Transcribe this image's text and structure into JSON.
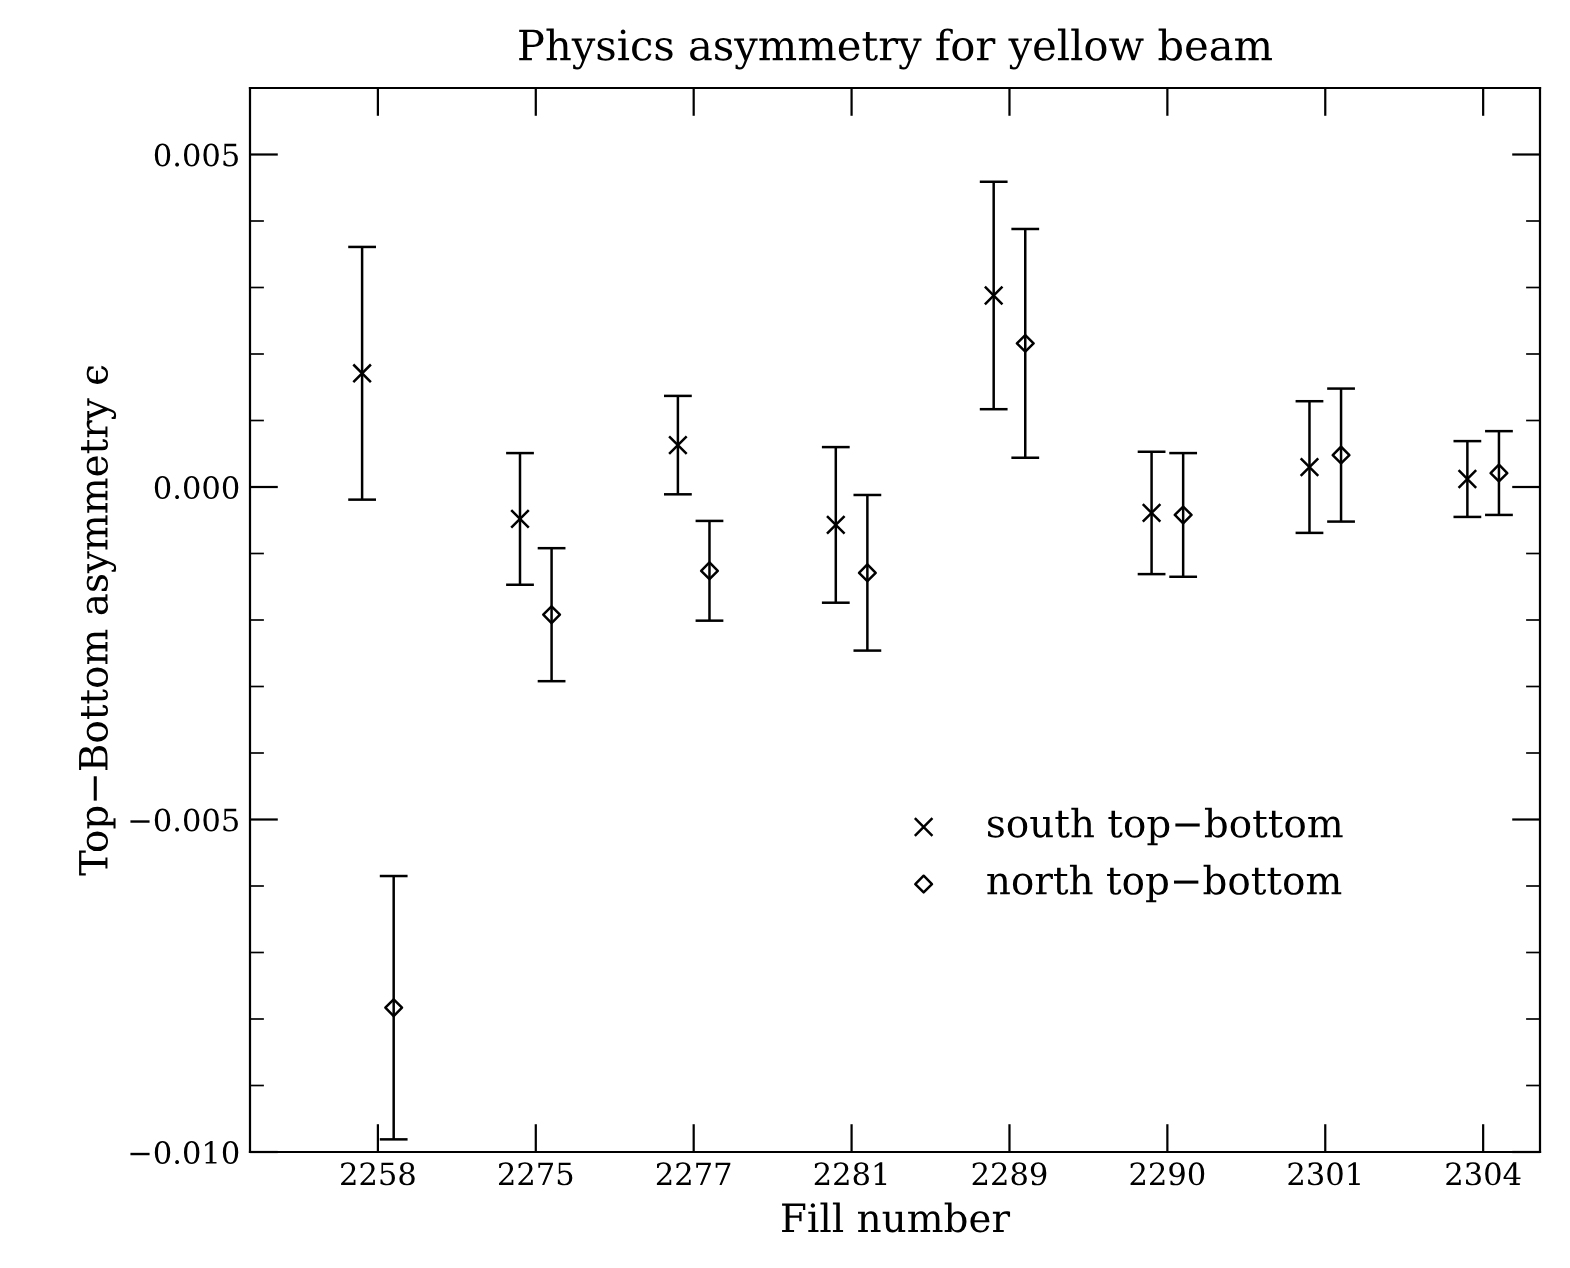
{
  "chart_data": {
    "type": "scatter",
    "title": "Physics asymmetry for yellow beam",
    "xlabel": "Fill number",
    "ylabel": "Top−Bottom asymmetry ϵ",
    "categories": [
      "2258",
      "2275",
      "2277",
      "2281",
      "2289",
      "2290",
      "2301",
      "2304"
    ],
    "series": [
      {
        "name": "south top−bottom",
        "color": "#000000",
        "marker": "cross",
        "values": [
          0.00171,
          -0.00048,
          0.00063,
          -0.00057,
          0.00288,
          -0.00039,
          0.0003,
          0.00012
        ],
        "errors": [
          0.0019,
          0.00099,
          0.00074,
          0.00117,
          0.00171,
          0.00092,
          0.00099,
          0.00057
        ]
      },
      {
        "name": "north top−bottom",
        "color": "#000000",
        "marker": "diamond",
        "values": [
          -0.00783,
          -0.00192,
          -0.00126,
          -0.00129,
          0.00216,
          -0.00042,
          0.00048,
          0.00021
        ],
        "errors": [
          0.00198,
          0.001,
          0.00075,
          0.00117,
          0.00172,
          0.00093,
          0.001,
          0.00063
        ]
      }
    ],
    "ylim": [
      -0.01,
      0.006
    ],
    "yticks": [
      {
        "value": -0.01,
        "label": "−0.010"
      },
      {
        "value": -0.005,
        "label": "−0.005"
      },
      {
        "value": 0,
        "label": "0.000"
      },
      {
        "value": 0.005,
        "label": "0.005"
      }
    ],
    "grid": false,
    "legend": "bottom right"
  }
}
